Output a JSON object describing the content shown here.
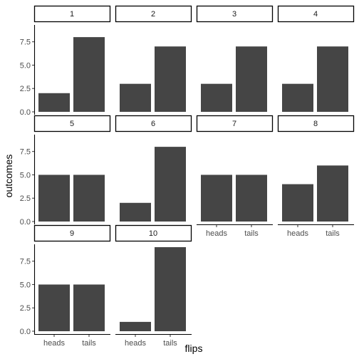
{
  "chart_data": {
    "type": "bar",
    "facet_by": "flip set",
    "categories": [
      "heads",
      "tails"
    ],
    "xlabel": "flips",
    "ylabel": "outcomes",
    "ylim": [
      0,
      9
    ],
    "yticks": [
      0,
      2.5,
      5,
      7.5
    ],
    "ytick_labels": [
      "0.0",
      "2.5",
      "5.0",
      "7.5"
    ],
    "bar_color": "#454545",
    "grid": false,
    "facets": [
      {
        "label": "1",
        "values": [
          2,
          8
        ]
      },
      {
        "label": "2",
        "values": [
          3,
          7
        ]
      },
      {
        "label": "3",
        "values": [
          3,
          7
        ]
      },
      {
        "label": "4",
        "values": [
          3,
          7
        ]
      },
      {
        "label": "5",
        "values": [
          5,
          5
        ]
      },
      {
        "label": "6",
        "values": [
          2,
          8
        ]
      },
      {
        "label": "7",
        "values": [
          5,
          5
        ]
      },
      {
        "label": "8",
        "values": [
          4,
          6
        ]
      },
      {
        "label": "9",
        "values": [
          5,
          5
        ]
      },
      {
        "label": "10",
        "values": [
          1,
          9
        ]
      }
    ]
  }
}
